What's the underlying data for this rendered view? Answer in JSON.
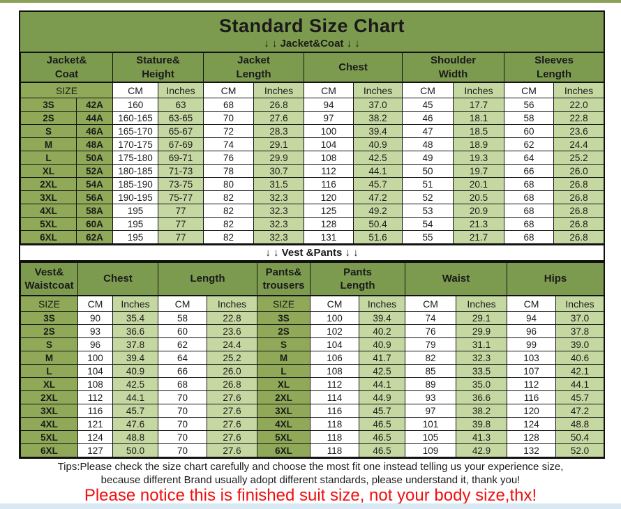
{
  "page": {
    "tips_line1": "Tips:Please check the size chart carefully and choose the most fit one instead telling us your experience size,",
    "tips_line2": "because different Brand usually adopt different standards, please understand it, thank you!",
    "notice": "Please notice this is finished suit size, not your body size,thx!"
  },
  "colors": {
    "header_green": "#7d9b4f",
    "size_cell_green": "#8fa958",
    "inches_cell_green": "#c6d8a2",
    "cm_cell_white": "#ffffff",
    "border_black": "#121212",
    "notice_red": "#f10e0e",
    "top_strip_green": "#8ba15a",
    "bottom_strip_blue": "#d8e9f3"
  },
  "chart_data": [
    {
      "type": "table",
      "title": "Standard Size Chart",
      "section_label": "↓ ↓  Jacket&Coat ↓ ↓",
      "group_headers": [
        "Jacket&\nCoat",
        "Stature&\nHeight",
        "Jacket\nLength",
        "Chest",
        "Shoulder\nWidth",
        "Sleeves\nLength"
      ],
      "group_spans": [
        2,
        2,
        2,
        2,
        2,
        2
      ],
      "unit_row": [
        "SIZE",
        "CM",
        "Inches",
        "CM",
        "Inches",
        "CM",
        "Inches",
        "CM",
        "Inches",
        "CM",
        "Inches"
      ],
      "unit_spans": [
        2,
        1,
        1,
        1,
        1,
        1,
        1,
        1,
        1,
        1,
        1
      ],
      "column_kinds": [
        "size",
        "size",
        "cm",
        "in",
        "cm",
        "in",
        "cm",
        "in",
        "cm",
        "in",
        "cm",
        "in"
      ],
      "rows": [
        [
          "3S",
          "42A",
          "160",
          "63",
          "68",
          "26.8",
          "94",
          "37.0",
          "45",
          "17.7",
          "56",
          "22.0"
        ],
        [
          "2S",
          "44A",
          "160-165",
          "63-65",
          "70",
          "27.6",
          "97",
          "38.2",
          "46",
          "18.1",
          "58",
          "22.8"
        ],
        [
          "S",
          "46A",
          "165-170",
          "65-67",
          "72",
          "28.3",
          "100",
          "39.4",
          "47",
          "18.5",
          "60",
          "23.6"
        ],
        [
          "M",
          "48A",
          "170-175",
          "67-69",
          "74",
          "29.1",
          "104",
          "40.9",
          "48",
          "18.9",
          "62",
          "24.4"
        ],
        [
          "L",
          "50A",
          "175-180",
          "69-71",
          "76",
          "29.9",
          "108",
          "42.5",
          "49",
          "19.3",
          "64",
          "25.2"
        ],
        [
          "XL",
          "52A",
          "180-185",
          "71-73",
          "78",
          "30.7",
          "112",
          "44.1",
          "50",
          "19.7",
          "66",
          "26.0"
        ],
        [
          "2XL",
          "54A",
          "185-190",
          "73-75",
          "80",
          "31.5",
          "116",
          "45.7",
          "51",
          "20.1",
          "68",
          "26.8"
        ],
        [
          "3XL",
          "56A",
          "190-195",
          "75-77",
          "82",
          "32.3",
          "120",
          "47.2",
          "52",
          "20.5",
          "68",
          "26.8"
        ],
        [
          "4XL",
          "58A",
          "195",
          "77",
          "82",
          "32.3",
          "125",
          "49.2",
          "53",
          "20.9",
          "68",
          "26.8"
        ],
        [
          "5XL",
          "60A",
          "195",
          "77",
          "82",
          "32.3",
          "128",
          "50.4",
          "54",
          "21.3",
          "68",
          "26.8"
        ],
        [
          "6XL",
          "62A",
          "195",
          "77",
          "82",
          "32.3",
          "131",
          "51.6",
          "55",
          "21.7",
          "68",
          "26.8"
        ]
      ]
    },
    {
      "type": "table",
      "section_label": "↓ ↓  Vest &Pants ↓ ↓",
      "group_headers": [
        "Vest&\nWaistcoat",
        "Chest",
        "Length",
        "Pants&\ntrousers",
        "Pants\nLength",
        "Waist",
        "Hips"
      ],
      "group_spans": [
        1,
        2,
        2,
        1,
        2,
        2,
        2
      ],
      "unit_row": [
        "SIZE",
        "CM",
        "Inches",
        "CM",
        "Inches",
        "SIZE",
        "CM",
        "Inches",
        "CM",
        "Inches",
        "CM",
        "Inches"
      ],
      "unit_spans": [
        1,
        1,
        1,
        1,
        1,
        1,
        1,
        1,
        1,
        1,
        1,
        1
      ],
      "column_kinds": [
        "size",
        "cm",
        "in",
        "cm",
        "in",
        "size",
        "cm",
        "in",
        "cm",
        "in",
        "cm",
        "in"
      ],
      "rows": [
        [
          "3S",
          "90",
          "35.4",
          "58",
          "22.8",
          "3S",
          "100",
          "39.4",
          "74",
          "29.1",
          "94",
          "37.0"
        ],
        [
          "2S",
          "93",
          "36.6",
          "60",
          "23.6",
          "2S",
          "102",
          "40.2",
          "76",
          "29.9",
          "96",
          "37.8"
        ],
        [
          "S",
          "96",
          "37.8",
          "62",
          "24.4",
          "S",
          "104",
          "40.9",
          "79",
          "31.1",
          "99",
          "39.0"
        ],
        [
          "M",
          "100",
          "39.4",
          "64",
          "25.2",
          "M",
          "106",
          "41.7",
          "82",
          "32.3",
          "103",
          "40.6"
        ],
        [
          "L",
          "104",
          "40.9",
          "66",
          "26.0",
          "L",
          "108",
          "42.5",
          "85",
          "33.5",
          "107",
          "42.1"
        ],
        [
          "XL",
          "108",
          "42.5",
          "68",
          "26.8",
          "XL",
          "112",
          "44.1",
          "89",
          "35.0",
          "112",
          "44.1"
        ],
        [
          "2XL",
          "112",
          "44.1",
          "70",
          "27.6",
          "2XL",
          "114",
          "44.9",
          "93",
          "36.6",
          "116",
          "45.7"
        ],
        [
          "3XL",
          "116",
          "45.7",
          "70",
          "27.6",
          "3XL",
          "116",
          "45.7",
          "97",
          "38.2",
          "120",
          "47.2"
        ],
        [
          "4XL",
          "121",
          "47.6",
          "70",
          "27.6",
          "4XL",
          "118",
          "46.5",
          "101",
          "39.8",
          "124",
          "48.8"
        ],
        [
          "5XL",
          "124",
          "48.8",
          "70",
          "27.6",
          "5XL",
          "118",
          "46.5",
          "105",
          "41.3",
          "128",
          "50.4"
        ],
        [
          "6XL",
          "127",
          "50.0",
          "70",
          "27.6",
          "6XL",
          "118",
          "46.5",
          "109",
          "42.9",
          "132",
          "52.0"
        ]
      ]
    }
  ]
}
